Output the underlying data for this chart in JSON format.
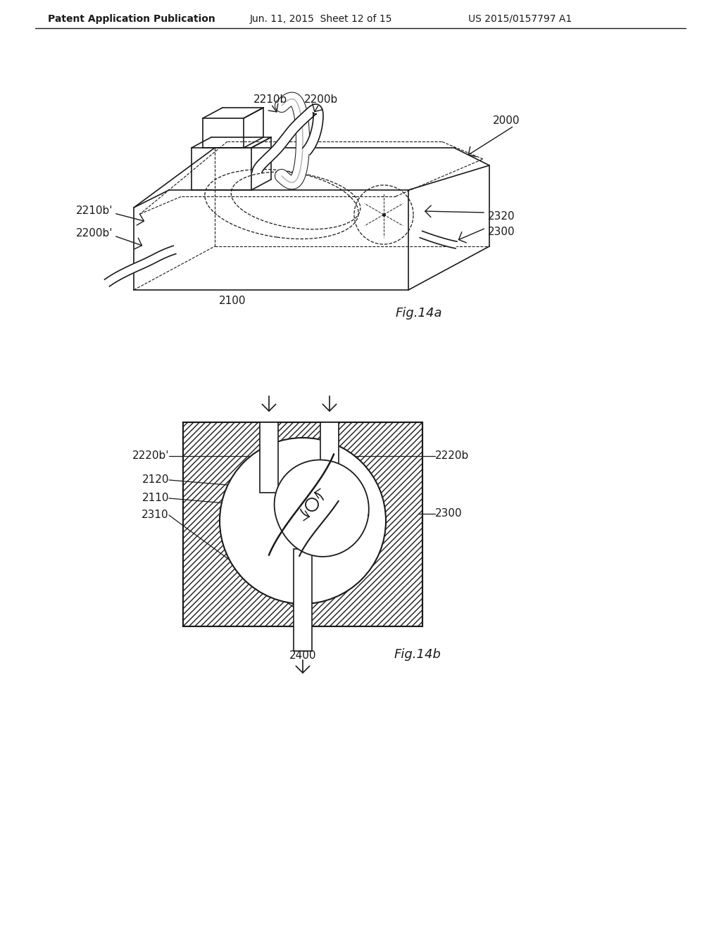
{
  "header_left": "Patent Application Publication",
  "header_mid": "Jun. 11, 2015  Sheet 12 of 15",
  "header_right": "US 2015/0157797 A1",
  "fig_a_label": "Fig.14a",
  "fig_b_label": "Fig.14b",
  "bg_color": "#ffffff",
  "line_color": "#1a1a1a"
}
